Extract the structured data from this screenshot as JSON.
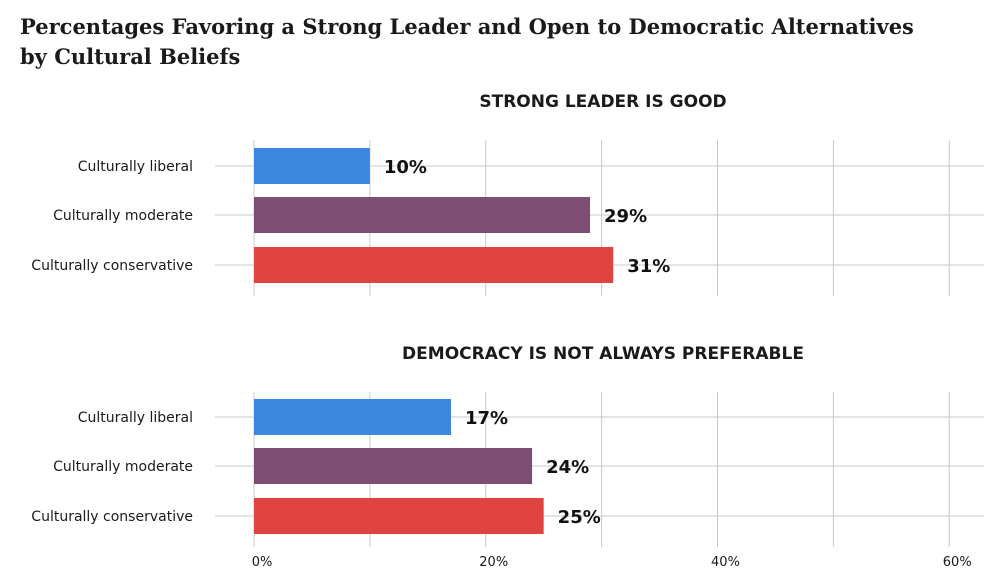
{
  "title_line1": "Percentages Favoring a Strong Leader and Open to Democratic Alternatives",
  "title_line2": "by Cultural Beliefs",
  "colors": {
    "liberal": "#3b87e0",
    "moderate": "#7e4d73",
    "conservative": "#e04440",
    "grid": "#c8c8c8"
  },
  "chart_data": [
    {
      "type": "bar",
      "title": "STRONG LEADER IS GOOD",
      "categories": [
        "Culturally liberal",
        "Culturally moderate",
        "Culturally conservative"
      ],
      "values": [
        10,
        29,
        31
      ],
      "labels": [
        "10%",
        "29%",
        "31%"
      ],
      "xlim": [
        0,
        63
      ],
      "grid": true
    },
    {
      "type": "bar",
      "title": "DEMOCRACY IS NOT ALWAYS PREFERABLE",
      "categories": [
        "Culturally liberal",
        "Culturally moderate",
        "Culturally conservative"
      ],
      "values": [
        17,
        24,
        25
      ],
      "labels": [
        "17%",
        "24%",
        "25%"
      ],
      "xlim": [
        0,
        63
      ],
      "grid": true,
      "x_ticks": [
        "0%",
        "20%",
        "40%",
        "60%"
      ]
    }
  ]
}
